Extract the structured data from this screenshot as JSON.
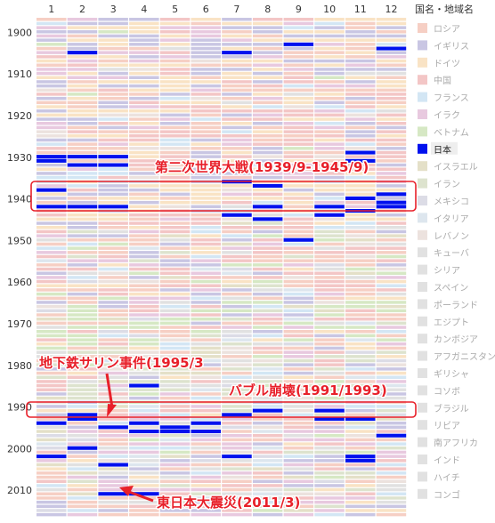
{
  "chart_data": {
    "type": "heatmap",
    "title": "",
    "xlabel": "",
    "ylabel": "",
    "month_labels": [
      "1",
      "2",
      "3",
      "4",
      "5",
      "6",
      "7",
      "8",
      "9",
      "10",
      "11",
      "12"
    ],
    "year_ticks": [
      1900,
      1910,
      1920,
      1930,
      1940,
      1950,
      1960,
      1970,
      1980,
      1990,
      2000,
      2010
    ],
    "year_range": [
      1897,
      2016
    ],
    "legend": {
      "title": "国名・地域名",
      "placement": "right",
      "entries": [
        {
          "name": "ロシア",
          "color": "#f6cfc4"
        },
        {
          "name": "イギリス",
          "color": "#c9c6e3"
        },
        {
          "name": "ドイツ",
          "color": "#f9e3c5"
        },
        {
          "name": "中国",
          "color": "#f3c6c6"
        },
        {
          "name": "フランス",
          "color": "#d3e6f4"
        },
        {
          "name": "イラク",
          "color": "#e8c9df"
        },
        {
          "name": "ベトナム",
          "color": "#d6e8c4"
        },
        {
          "name": "日本",
          "color": "#0011ee"
        },
        {
          "name": "イスラエル",
          "color": "#e4e0c8"
        },
        {
          "name": "イラン",
          "color": "#dde3ce"
        },
        {
          "name": "メキシコ",
          "color": "#dcdce6"
        },
        {
          "name": "イタリア",
          "color": "#dde6ee"
        },
        {
          "name": "レバノン",
          "color": "#ece2de"
        },
        {
          "name": "キューバ",
          "color": "#e1e1e1"
        },
        {
          "name": "シリア",
          "color": "#e1e1e1"
        },
        {
          "name": "スペイン",
          "color": "#e1e1e1"
        },
        {
          "name": "ポーランド",
          "color": "#e1e1e1"
        },
        {
          "name": "エジプト",
          "color": "#e1e1e1"
        },
        {
          "name": "カンボジア",
          "color": "#e1e1e1"
        },
        {
          "name": "アフガニスタン",
          "color": "#e1e1e1"
        },
        {
          "name": "ギリシャ",
          "color": "#e1e1e1"
        },
        {
          "name": "コソボ",
          "color": "#e1e1e1"
        },
        {
          "name": "ブラジル",
          "color": "#e1e1e1"
        },
        {
          "name": "リビア",
          "color": "#e1e1e1"
        },
        {
          "name": "南アフリカ",
          "color": "#e1e1e1"
        },
        {
          "name": "インド",
          "color": "#e1e1e1"
        },
        {
          "name": "ハイチ",
          "color": "#e1e1e1"
        },
        {
          "name": "コンゴ",
          "color": "#e1e1e1"
        }
      ],
      "highlighted": "日本"
    },
    "japan_cells": [
      {
        "year": 1903,
        "month": 9
      },
      {
        "year": 1904,
        "month": 12
      },
      {
        "year": 1905,
        "month": 2
      },
      {
        "year": 1905,
        "month": 7
      },
      {
        "year": 1929,
        "month": 11
      },
      {
        "year": 1930,
        "month": 1
      },
      {
        "year": 1930,
        "month": 2
      },
      {
        "year": 1930,
        "month": 3
      },
      {
        "year": 1931,
        "month": 1
      },
      {
        "year": 1931,
        "month": 11
      },
      {
        "year": 1932,
        "month": 2
      },
      {
        "year": 1932,
        "month": 3
      },
      {
        "year": 1936,
        "month": 7
      },
      {
        "year": 1937,
        "month": 8
      },
      {
        "year": 1938,
        "month": 1
      },
      {
        "year": 1939,
        "month": 12
      },
      {
        "year": 1940,
        "month": 11
      },
      {
        "year": 1941,
        "month": 12
      },
      {
        "year": 1942,
        "month": 1
      },
      {
        "year": 1942,
        "month": 2
      },
      {
        "year": 1942,
        "month": 3
      },
      {
        "year": 1942,
        "month": 8
      },
      {
        "year": 1942,
        "month": 10
      },
      {
        "year": 1942,
        "month": 12
      },
      {
        "year": 1943,
        "month": 11
      },
      {
        "year": 1944,
        "month": 7
      },
      {
        "year": 1944,
        "month": 10
      },
      {
        "year": 1945,
        "month": 8
      },
      {
        "year": 1950,
        "month": 9
      },
      {
        "year": 1985,
        "month": 4
      },
      {
        "year": 1991,
        "month": 8
      },
      {
        "year": 1991,
        "month": 10
      },
      {
        "year": 1992,
        "month": 7
      },
      {
        "year": 1992,
        "month": 2
      },
      {
        "year": 1993,
        "month": 2
      },
      {
        "year": 1993,
        "month": 10
      },
      {
        "year": 1993,
        "month": 11
      },
      {
        "year": 1994,
        "month": 1
      },
      {
        "year": 1994,
        "month": 4
      },
      {
        "year": 1994,
        "month": 6
      },
      {
        "year": 1995,
        "month": 3
      },
      {
        "year": 1995,
        "month": 5
      },
      {
        "year": 1996,
        "month": 4
      },
      {
        "year": 1996,
        "month": 5
      },
      {
        "year": 1996,
        "month": 6
      },
      {
        "year": 1997,
        "month": 12
      },
      {
        "year": 2000,
        "month": 2
      },
      {
        "year": 2002,
        "month": 1
      },
      {
        "year": 2002,
        "month": 7
      },
      {
        "year": 2002,
        "month": 11
      },
      {
        "year": 2003,
        "month": 11
      },
      {
        "year": 2004,
        "month": 3
      },
      {
        "year": 2011,
        "month": 3
      },
      {
        "year": 2011,
        "month": 4
      }
    ],
    "annotations": [
      {
        "text": "第二次世界大戦(1939/9-1945/9)",
        "year_from": 1939,
        "year_to": 1945
      },
      {
        "text": "地下鉄サリン事件(1995/3",
        "year": 1995,
        "month": 3
      },
      {
        "text": "バブル崩壊(1991/1993)",
        "year_from": 1991,
        "year_to": 1993
      },
      {
        "text": "東日本大震災(2011/3)",
        "year": 2011,
        "month": 3
      }
    ]
  }
}
